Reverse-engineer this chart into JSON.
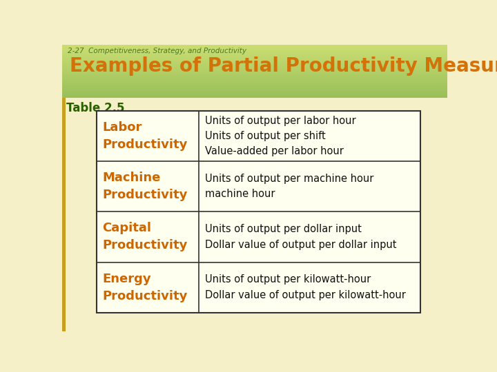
{
  "top_label": "2-27  Competitiveness, Strategy, and Productivity",
  "title": "Examples of Partial Productivity Measures",
  "subtitle": "Table 2.5",
  "page_bg": "#f5f0c8",
  "header_bg_light": "#c8d98a",
  "header_bg_dark": "#8db56a",
  "left_bar_color": "#c8b030",
  "title_color": "#d4720a",
  "subtitle_color": "#2a6000",
  "top_label_color": "#4a7a20",
  "row_label_color": "#cc6600",
  "row_text_color": "#111111",
  "table_border_color": "#333333",
  "table_bg": "#fffff0",
  "rows": [
    {
      "label": "Labor\nProductivity",
      "content": "Units of output per labor hour\nUnits of output per shift\nValue-added per labor hour"
    },
    {
      "label": "Machine\nProductivity",
      "content": "Units of output per machine hour\nmachine hour"
    },
    {
      "label": "Capital\nProductivity",
      "content": "Units of output per dollar input\nDollar value of output per dollar input"
    },
    {
      "label": "Energy\nProductivity",
      "content": "Units of output per kilowatt-hour\nDollar value of output per kilowatt-hour"
    }
  ]
}
